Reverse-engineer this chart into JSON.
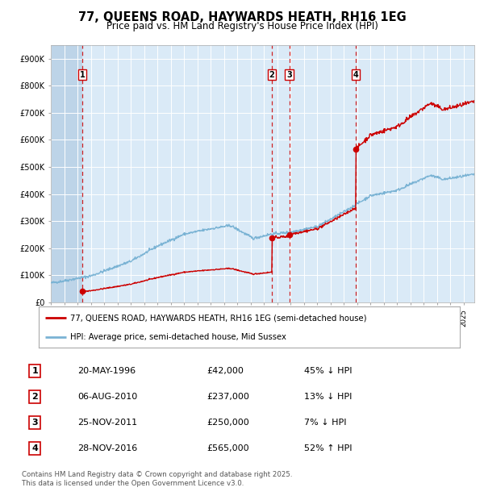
{
  "title": "77, QUEENS ROAD, HAYWARDS HEATH, RH16 1EG",
  "subtitle": "Price paid vs. HM Land Registry's House Price Index (HPI)",
  "legend_line1": "77, QUEENS ROAD, HAYWARDS HEATH, RH16 1EG (semi-detached house)",
  "legend_line2": "HPI: Average price, semi-detached house, Mid Sussex",
  "footer1": "Contains HM Land Registry data © Crown copyright and database right 2025.",
  "footer2": "This data is licensed under the Open Government Licence v3.0.",
  "transactions": [
    {
      "num": 1,
      "date": "20-MAY-1996",
      "price": 42000,
      "pct": "45%",
      "dir": "↓",
      "year": 1996.38
    },
    {
      "num": 2,
      "date": "06-AUG-2010",
      "price": 237000,
      "pct": "13%",
      "dir": "↓",
      "year": 2010.6
    },
    {
      "num": 3,
      "date": "25-NOV-2011",
      "price": 250000,
      "pct": "7%",
      "dir": "↓",
      "year": 2011.9
    },
    {
      "num": 4,
      "date": "28-NOV-2016",
      "price": 565000,
      "pct": "52%",
      "dir": "↑",
      "year": 2016.9
    }
  ],
  "hpi_color": "#7ab3d4",
  "price_color": "#cc0000",
  "dashed_color": "#cc0000",
  "bg_color": "#daeaf7",
  "grid_color": "#ffffff",
  "hatch_color": "#bdd4e8",
  "ylim": [
    0,
    950000
  ],
  "yticks": [
    0,
    100000,
    200000,
    300000,
    400000,
    500000,
    600000,
    700000,
    800000,
    900000
  ],
  "xmin": 1994.0,
  "xmax": 2025.8
}
